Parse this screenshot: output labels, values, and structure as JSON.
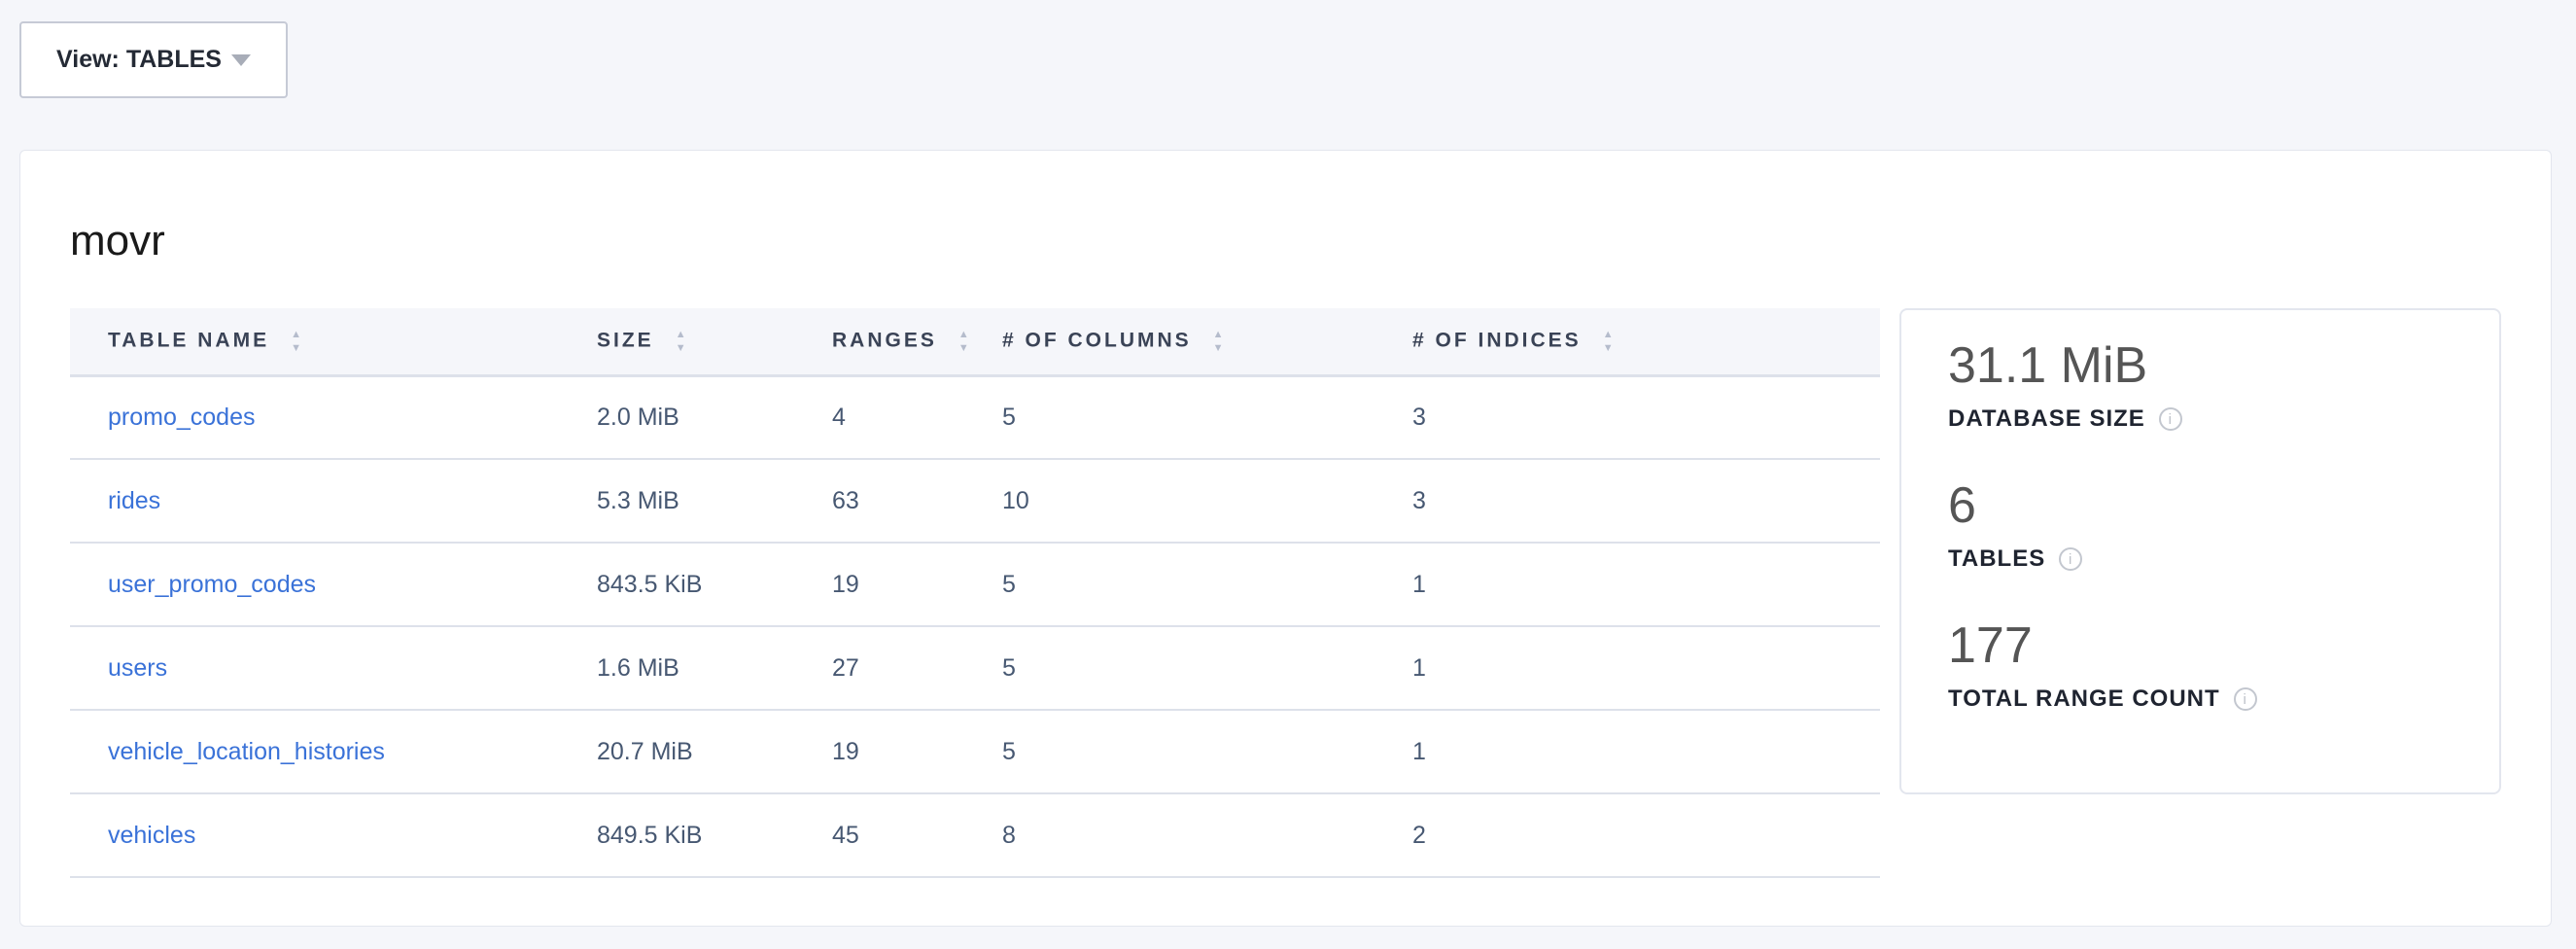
{
  "view_selector": {
    "label": "View: TABLES"
  },
  "database": {
    "name": "movr"
  },
  "table": {
    "columns": [
      "TABLE NAME",
      "SIZE",
      "RANGES",
      "# OF COLUMNS",
      "# OF INDICES"
    ],
    "rows": [
      [
        "promo_codes",
        "2.0 MiB",
        "4",
        "5",
        "3"
      ],
      [
        "rides",
        "5.3 MiB",
        "63",
        "10",
        "3"
      ],
      [
        "user_promo_codes",
        "843.5 KiB",
        "19",
        "5",
        "1"
      ],
      [
        "users",
        "1.6 MiB",
        "27",
        "5",
        "1"
      ],
      [
        "vehicle_location_histories",
        "20.7 MiB",
        "19",
        "5",
        "1"
      ],
      [
        "vehicles",
        "849.5 KiB",
        "45",
        "8",
        "2"
      ]
    ]
  },
  "summary": [
    {
      "value": "31.1 MiB",
      "label": "DATABASE SIZE"
    },
    {
      "value": "6",
      "label": "TABLES"
    },
    {
      "value": "177",
      "label": "TOTAL RANGE COUNT"
    }
  ]
}
